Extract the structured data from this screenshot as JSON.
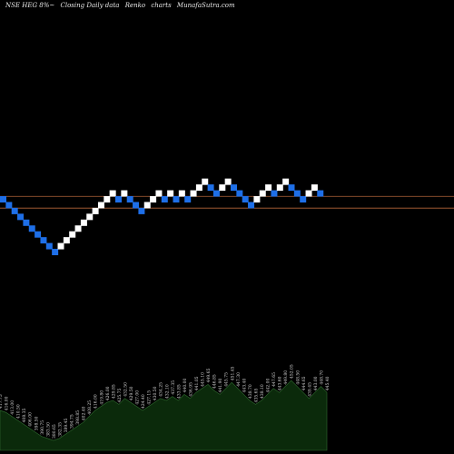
{
  "header": {
    "symbol": "NSE HEG 8%~",
    "chart_kind": "Closing Daily data",
    "chart_style": "Renko",
    "charts_word": "charts",
    "site": "MunafaSutra.com"
  },
  "colors": {
    "background": "#000000",
    "up_brick": "#ffffff",
    "down_brick": "#1e6fe8",
    "ref_line": "#b5653a",
    "volume_fill": "#0b2a0b",
    "volume_outline": "#2f6b2f"
  },
  "chart_data": [
    {
      "type": "renko",
      "bricks": [
        {
          "dir": "down",
          "level": 0
        },
        {
          "dir": "down",
          "level": -1
        },
        {
          "dir": "down",
          "level": -2
        },
        {
          "dir": "down",
          "level": -3
        },
        {
          "dir": "down",
          "level": -4
        },
        {
          "dir": "down",
          "level": -5
        },
        {
          "dir": "down",
          "level": -6
        },
        {
          "dir": "down",
          "level": -7
        },
        {
          "dir": "down",
          "level": -8
        },
        {
          "dir": "down",
          "level": -9
        },
        {
          "dir": "up",
          "level": -8
        },
        {
          "dir": "up",
          "level": -7
        },
        {
          "dir": "up",
          "level": -6
        },
        {
          "dir": "up",
          "level": -5
        },
        {
          "dir": "up",
          "level": -4
        },
        {
          "dir": "up",
          "level": -3
        },
        {
          "dir": "up",
          "level": -2
        },
        {
          "dir": "up",
          "level": -1
        },
        {
          "dir": "up",
          "level": 0
        },
        {
          "dir": "up",
          "level": 1
        },
        {
          "dir": "down",
          "level": 0
        },
        {
          "dir": "up",
          "level": 1
        },
        {
          "dir": "down",
          "level": 0
        },
        {
          "dir": "down",
          "level": -1
        },
        {
          "dir": "down",
          "level": -2
        },
        {
          "dir": "up",
          "level": -1
        },
        {
          "dir": "up",
          "level": 0
        },
        {
          "dir": "up",
          "level": 1
        },
        {
          "dir": "down",
          "level": 0
        },
        {
          "dir": "up",
          "level": 1
        },
        {
          "dir": "down",
          "level": 0
        },
        {
          "dir": "up",
          "level": 1
        },
        {
          "dir": "down",
          "level": 0
        },
        {
          "dir": "up",
          "level": 1
        },
        {
          "dir": "up",
          "level": 2
        },
        {
          "dir": "up",
          "level": 3
        },
        {
          "dir": "down",
          "level": 2
        },
        {
          "dir": "down",
          "level": 1
        },
        {
          "dir": "up",
          "level": 2
        },
        {
          "dir": "up",
          "level": 3
        },
        {
          "dir": "down",
          "level": 2
        },
        {
          "dir": "down",
          "level": 1
        },
        {
          "dir": "down",
          "level": 0
        },
        {
          "dir": "down",
          "level": -1
        },
        {
          "dir": "up",
          "level": 0
        },
        {
          "dir": "up",
          "level": 1
        },
        {
          "dir": "up",
          "level": 2
        },
        {
          "dir": "down",
          "level": 1
        },
        {
          "dir": "up",
          "level": 2
        },
        {
          "dir": "up",
          "level": 3
        },
        {
          "dir": "down",
          "level": 2
        },
        {
          "dir": "down",
          "level": 1
        },
        {
          "dir": "down",
          "level": 0
        },
        {
          "dir": "up",
          "level": 1
        },
        {
          "dir": "up",
          "level": 2
        },
        {
          "dir": "down",
          "level": 1
        }
      ],
      "reference_levels": [
        0.5,
        -1.5
      ]
    },
    {
      "type": "area",
      "series_role": "volume",
      "values": [
        40,
        38,
        34,
        30,
        26,
        22,
        18,
        14,
        12,
        10,
        12,
        16,
        20,
        24,
        28,
        34,
        40,
        44,
        48,
        50,
        46,
        52,
        48,
        44,
        40,
        44,
        48,
        52,
        50,
        54,
        50,
        56,
        52,
        58,
        62,
        66,
        60,
        56,
        62,
        68,
        62,
        56,
        50,
        46,
        50,
        56,
        62,
        58,
        64,
        70,
        64,
        58,
        52,
        58,
        64,
        58
      ],
      "labels": [
        "417.75",
        "416.00",
        "413.00",
        "410.50",
        "408.35",
        "406.00",
        "398.50",
        "390.75",
        "383.50",
        "380.65",
        "382.35",
        "389.45",
        "394.75",
        "398.85",
        "402.40",
        "408.25",
        "416.00",
        "419.80",
        "426.00",
        "429.85",
        "425.75",
        "432.50",
        "429.50",
        "427.00",
        "424.40",
        "427.15",
        "430.50",
        "434.25",
        "432.10",
        "437.35",
        "433.85",
        "440.00",
        "436.95",
        "441.05",
        "445.10",
        "449.65",
        "446.85",
        "441.90",
        "445.75",
        "451.45",
        "447.30",
        "443.40",
        "438.70",
        "435.65",
        "438.10",
        "442.00",
        "447.65",
        "443.60",
        "449.80",
        "452.05",
        "448.50",
        "444.65",
        "439.45",
        "443.00",
        "448.70",
        "445.40"
      ]
    }
  ]
}
